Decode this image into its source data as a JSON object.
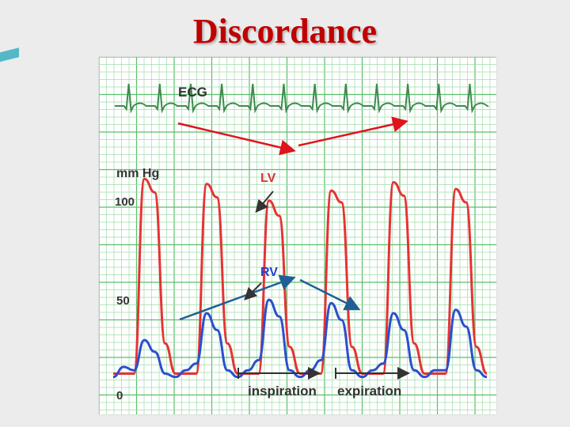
{
  "slide": {
    "title": "Discordance"
  },
  "chart_data": {
    "type": "line",
    "title": "",
    "ylabel": "mm Hg",
    "ylim": [
      0,
      130
    ],
    "y_ticks": [
      {
        "value": 100,
        "label": "100"
      },
      {
        "value": 50,
        "label": "50"
      },
      {
        "value": 0,
        "label": "0"
      }
    ],
    "grid": true,
    "colors": {
      "grid_minor": "#9fdca9",
      "grid_major": "#58c06a",
      "ecg": "#3f8a4d",
      "lv": "#e63333",
      "rv": "#2b4fcf",
      "red_arrow": "#e0141e",
      "blue_arrow": "#1f5f95",
      "label_dark": "#333333",
      "lv_label": "#e03030",
      "rv_label": "#2040d0"
    },
    "series": [
      {
        "name": "LV",
        "color_key": "lv",
        "values": [
          12,
          12,
          12,
          128,
          120,
          30,
          12,
          12,
          12,
          125,
          117,
          30,
          12,
          12,
          12,
          115,
          106,
          28,
          12,
          12,
          12,
          121,
          114,
          28,
          12,
          12,
          12,
          126,
          118,
          30,
          12,
          12,
          12,
          122,
          114,
          28,
          12
        ]
      },
      {
        "name": "RV",
        "color_key": "rv",
        "values": [
          10,
          16,
          14,
          32,
          25,
          12,
          10,
          14,
          18,
          48,
          38,
          14,
          10,
          14,
          20,
          56,
          46,
          14,
          10,
          14,
          20,
          54,
          44,
          14,
          10,
          14,
          18,
          48,
          38,
          14,
          10,
          14,
          14,
          50,
          40,
          14,
          10
        ]
      }
    ],
    "ecg": {
      "label": "ECG",
      "peaks": 12
    },
    "annotations": {
      "lv_label": "LV",
      "rv_label": "RV",
      "phases": [
        {
          "label": "inspiration"
        },
        {
          "label": "expiration"
        }
      ]
    }
  }
}
